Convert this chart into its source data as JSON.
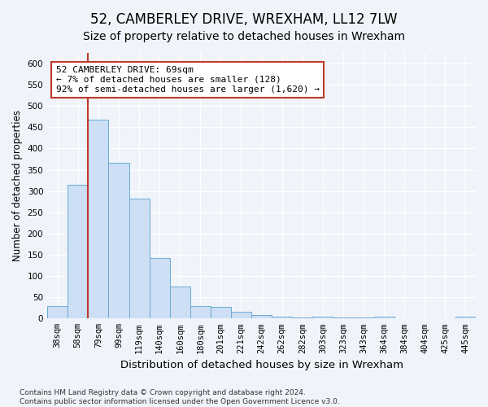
{
  "title": "52, CAMBERLEY DRIVE, WREXHAM, LL12 7LW",
  "subtitle": "Size of property relative to detached houses in Wrexham",
  "xlabel": "Distribution of detached houses by size in Wrexham",
  "ylabel": "Number of detached properties",
  "categories": [
    "38sqm",
    "58sqm",
    "79sqm",
    "99sqm",
    "119sqm",
    "140sqm",
    "160sqm",
    "180sqm",
    "201sqm",
    "221sqm",
    "242sqm",
    "262sqm",
    "282sqm",
    "303sqm",
    "323sqm",
    "343sqm",
    "364sqm",
    "384sqm",
    "404sqm",
    "425sqm",
    "445sqm"
  ],
  "values": [
    30,
    315,
    467,
    367,
    283,
    142,
    75,
    30,
    27,
    15,
    8,
    5,
    3,
    5,
    3,
    2,
    5,
    1,
    1,
    1,
    5
  ],
  "bar_color": "#ccdff5",
  "bar_edge_color": "#6aaad4",
  "vline_color": "#c0392b",
  "annotation_text": "52 CAMBERLEY DRIVE: 69sqm\n← 7% of detached houses are smaller (128)\n92% of semi-detached houses are larger (1,620) →",
  "annotation_box_color": "#ffffff",
  "annotation_border_color": "#c0392b",
  "ylim": [
    0,
    625
  ],
  "yticks": [
    0,
    50,
    100,
    150,
    200,
    250,
    300,
    350,
    400,
    450,
    500,
    550,
    600
  ],
  "background_color": "#f0f4fa",
  "plot_background": "#f0f4fa",
  "grid_color": "#ffffff",
  "footnote": "Contains HM Land Registry data © Crown copyright and database right 2024.\nContains public sector information licensed under the Open Government Licence v3.0.",
  "title_fontsize": 12,
  "subtitle_fontsize": 10,
  "xlabel_fontsize": 9.5,
  "ylabel_fontsize": 8.5,
  "tick_fontsize": 7.5,
  "annotation_fontsize": 8,
  "footnote_fontsize": 6.5
}
